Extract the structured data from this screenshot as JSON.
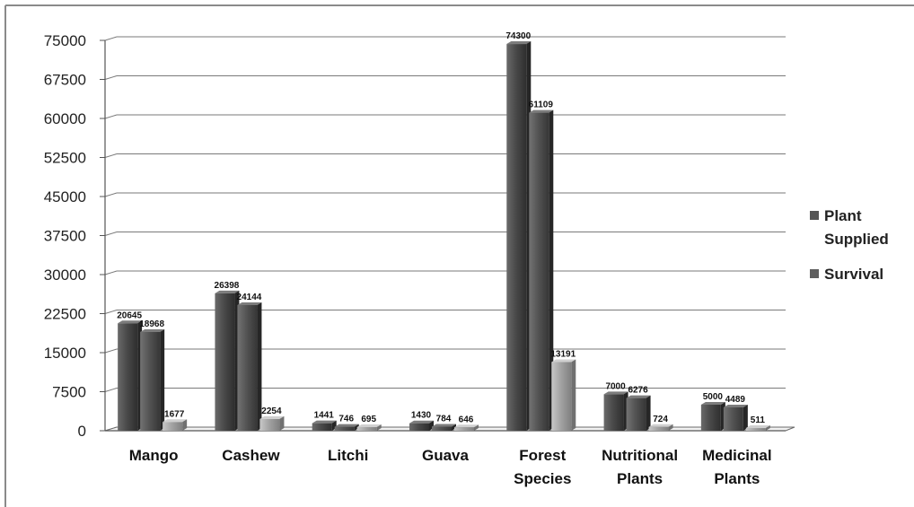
{
  "chart_data": {
    "type": "bar",
    "categories": [
      [
        "Mango"
      ],
      [
        "Cashew"
      ],
      [
        "Litchi"
      ],
      [
        "Guava"
      ],
      [
        "Forest",
        "Species"
      ],
      [
        "Nutritional",
        "Plants"
      ],
      [
        "Medicinal",
        "Plants"
      ]
    ],
    "series": [
      {
        "name": "Plant Supplied",
        "values": [
          20645,
          26398,
          1441,
          1430,
          74300,
          7000,
          5000
        ],
        "color": "#555555"
      },
      {
        "name": "Survival",
        "values": [
          18968,
          24144,
          746,
          784,
          61109,
          6276,
          4489
        ],
        "color": "#5e5e5e"
      },
      {
        "name": "",
        "values": [
          1677,
          2254,
          695,
          646,
          13191,
          724,
          511
        ],
        "color": "#a6a6a6"
      }
    ],
    "data_labels": [
      [
        "20645",
        "26398",
        "1441",
        "1430",
        "74300",
        "7000",
        "5000"
      ],
      [
        "18968",
        "24144",
        "746",
        "784",
        "61109",
        "6276",
        "4489"
      ],
      [
        "1677",
        "2254",
        "695",
        "646",
        "13191",
        "724",
        "511"
      ]
    ],
    "y_ticks": [
      0,
      7500,
      15000,
      22500,
      30000,
      37500,
      45000,
      52500,
      60000,
      67500,
      75000
    ],
    "ylim": [
      0,
      75000
    ],
    "title": "",
    "xlabel": "",
    "ylabel": "",
    "grid": true,
    "legend": {
      "position": "right",
      "entries": [
        {
          "lines": [
            "Plant",
            "Supplied"
          ],
          "color": "#555555"
        },
        {
          "lines": [
            "Survival"
          ],
          "color": "#5e5e5e"
        }
      ]
    }
  }
}
